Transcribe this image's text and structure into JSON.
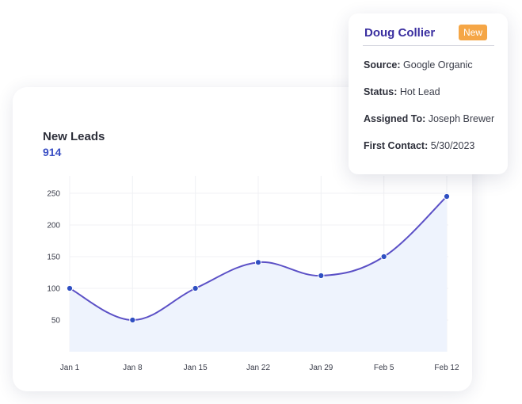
{
  "metric": {
    "title": "New Leads",
    "value": "914"
  },
  "popup": {
    "name": "Doug Collier",
    "badge": "New",
    "rows": [
      {
        "label": "Source:",
        "value": "Google Organic"
      },
      {
        "label": "Status:",
        "value": "Hot Lead"
      },
      {
        "label": "Assigned To:",
        "value": "Joseph Brewer"
      },
      {
        "label": "First Contact:",
        "value": "5/30/2023"
      }
    ]
  },
  "colors": {
    "line": "#5b50c6",
    "area": "#eef3fd",
    "point": "#2f4fc2",
    "grid": "#f0f1f4",
    "badge": "#f5a646"
  },
  "chart_data": {
    "type": "area",
    "title": "New Leads",
    "categories": [
      "Jan 1",
      "Jan 8",
      "Jan 15",
      "Jan 22",
      "Jan 29",
      "Feb 5",
      "Feb 12"
    ],
    "values": [
      100,
      50,
      100,
      141,
      120,
      150,
      245
    ],
    "yticks": [
      50,
      100,
      150,
      200,
      250
    ],
    "ylim": [
      0,
      250
    ],
    "xlabel": "",
    "ylabel": "",
    "grid": true
  }
}
